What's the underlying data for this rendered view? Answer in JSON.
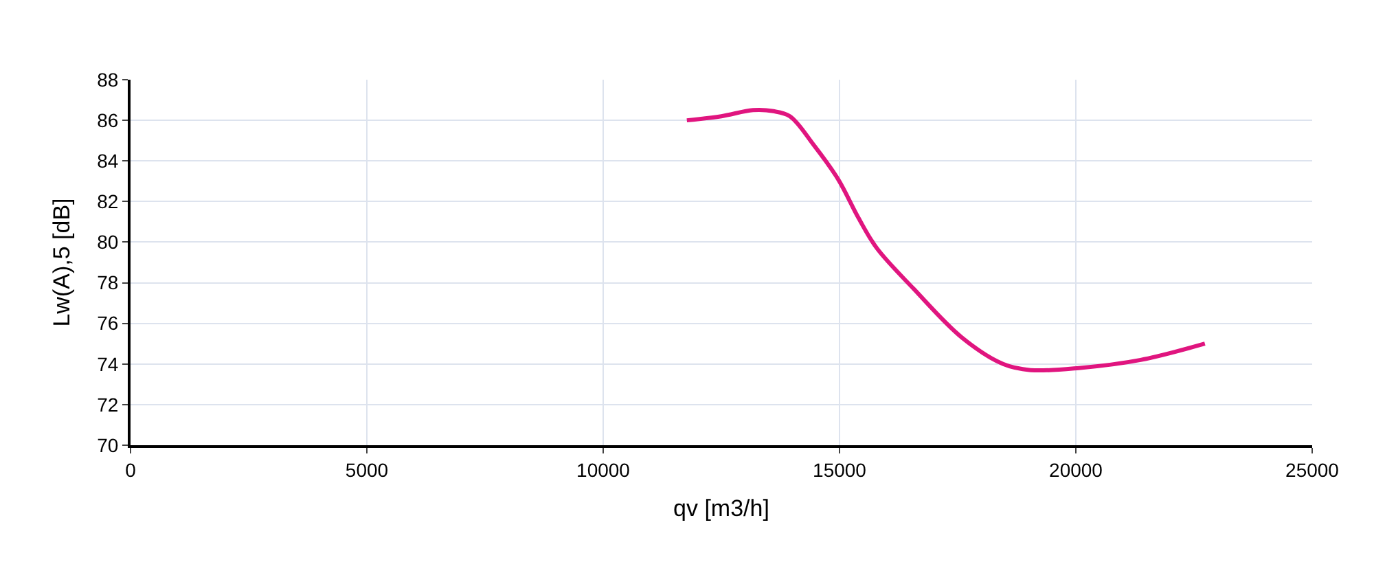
{
  "chart_data": {
    "type": "line",
    "xlabel": "qv [m3/h]",
    "ylabel": "Lw(A),5 [dB]",
    "x": [
      11770,
      12500,
      13170,
      13600,
      13950,
      14450,
      14970,
      15400,
      15790,
      16570,
      17590,
      18460,
      19040,
      20060,
      21370,
      22730
    ],
    "series": [
      {
        "color": "#e0157f",
        "values": [
          86.0,
          86.2,
          86.5,
          86.45,
          86.2,
          84.8,
          83.1,
          81.2,
          79.7,
          77.7,
          75.3,
          74.0,
          73.7,
          73.8,
          74.2,
          75.0
        ]
      }
    ],
    "xlim": [
      0,
      25000
    ],
    "xticks": [
      0,
      5000,
      10000,
      15000,
      20000,
      25000
    ],
    "ylim": [
      70,
      88
    ],
    "yticks": [
      70,
      72,
      74,
      76,
      78,
      80,
      82,
      84,
      86,
      88
    ],
    "grid": true,
    "marker": "none",
    "line_style": "solid"
  }
}
